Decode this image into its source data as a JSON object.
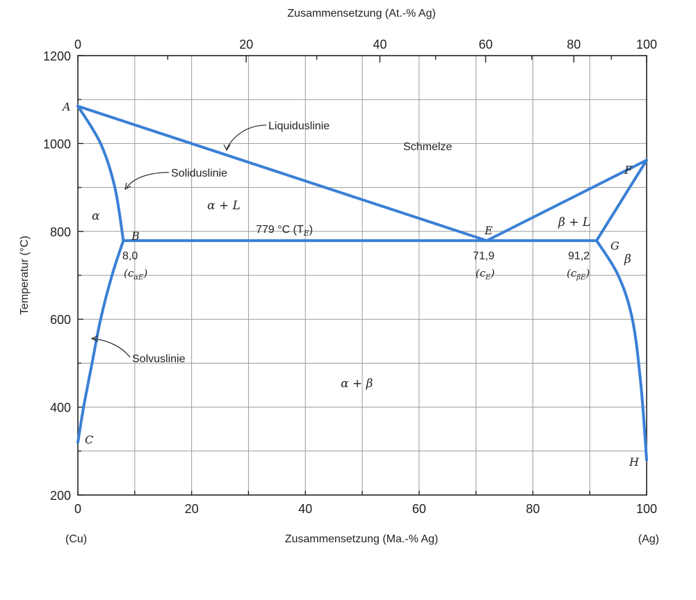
{
  "chart_data": {
    "type": "line",
    "title": "",
    "xlabel": "Zusammensetzung (Ma.-% Ag)",
    "xlabel_top": "Zusammensetzung (At.-% Ag)",
    "ylabel": "Temperatur (°C)",
    "xlim": [
      0,
      100
    ],
    "ylim": [
      200,
      1200
    ],
    "x_ticks": [
      "0",
      "20",
      "40",
      "60",
      "80",
      "100"
    ],
    "x_ticks_top": [
      "0",
      "20",
      "40",
      "60",
      "80",
      "100"
    ],
    "y_ticks": [
      "200",
      "400",
      "600",
      "800",
      "1000",
      "1200"
    ],
    "end_labels": {
      "left": "(Cu)",
      "right": "(Ag)"
    },
    "grid": true,
    "series": [
      {
        "name": "Liquiduslinie",
        "x": [
          0,
          71.9,
          100
        ],
        "y": [
          1085,
          779,
          962
        ]
      },
      {
        "name": "Soliduslinie",
        "x": [
          0,
          4,
          6.5,
          8.0,
          91.2,
          100
        ],
        "y": [
          1085,
          1000,
          900,
          779,
          779,
          962
        ]
      },
      {
        "name": "Solvuslinie",
        "x": [
          8.0,
          6,
          4,
          2.5,
          1,
          0
        ],
        "y": [
          779,
          700,
          600,
          500,
          400,
          320
        ]
      },
      {
        "x": [
          91.2,
          95,
          97.5,
          99,
          100
        ],
        "y": [
          779,
          700,
          600,
          450,
          280
        ]
      }
    ],
    "points": [
      {
        "label": "A",
        "x": 0,
        "y": 1085
      },
      {
        "label": "B",
        "x": 8.0,
        "y": 779
      },
      {
        "label": "C",
        "x": 0,
        "y": 320
      },
      {
        "label": "E",
        "x": 71.9,
        "y": 779
      },
      {
        "label": "F",
        "x": 100,
        "y": 962
      },
      {
        "label": "G",
        "x": 91.2,
        "y": 779
      },
      {
        "label": "H",
        "x": 100,
        "y": 280
      }
    ],
    "annotations": {
      "liquidus": "Liquiduslinie",
      "solidus": "Soliduslinie",
      "solvus": "Solvuslinie",
      "melt": "Schmelze",
      "alpha_L": "α + L",
      "beta_L": "β + L",
      "alpha": "α",
      "beta": "β",
      "alpha_beta": "α + β",
      "eutectic_temp": "779 °C (T",
      "eutectic_temp_sub": "E",
      "eutectic_temp_close": ")",
      "c_alpha_E_value": "8,0",
      "c_alpha_E_label": "(c",
      "c_alpha_E_sub": "αE",
      "c_E_value": "71,9",
      "c_E_label": "(c",
      "c_E_sub": "E",
      "c_beta_E_value": "91,2",
      "c_beta_E_label": "(c",
      "c_beta_E_sub": "βE",
      "close_paren": ")"
    }
  }
}
